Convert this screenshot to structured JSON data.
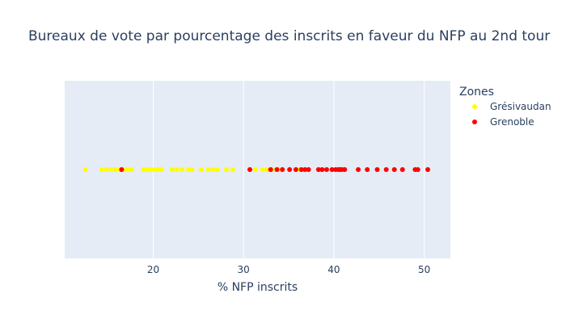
{
  "chart_data": {
    "type": "scatter",
    "title": "Bureaux de vote par pourcentage des inscrits en faveur du NFP au 2nd tour",
    "xlabel": "% NFP inscrits",
    "ylabel": "",
    "xlim": [
      10.2,
      52.9
    ],
    "xticks": [
      20,
      30,
      40,
      50
    ],
    "legend_title": "Zones",
    "legend_position": "right",
    "series": [
      {
        "name": "Grésivaudan",
        "color": "#ffff00",
        "x": [
          12.5,
          14.3,
          14.8,
          15.3,
          15.8,
          16.3,
          16.7,
          17.2,
          17.6,
          18.9,
          19.3,
          19.7,
          20.1,
          20.5,
          20.9,
          22.1,
          22.6,
          23.2,
          23.9,
          24.3,
          25.3,
          26.1,
          26.6,
          27.1,
          28.1,
          28.8,
          31.3,
          32.1,
          32.6,
          33.2,
          34.0,
          36.2
        ]
      },
      {
        "name": "Grenoble",
        "color": "#ff0000",
        "x": [
          16.5,
          30.7,
          33.0,
          33.7,
          34.3,
          35.1,
          35.8,
          36.4,
          36.8,
          37.2,
          38.3,
          38.7,
          39.2,
          39.8,
          40.2,
          40.5,
          40.7,
          40.9,
          41.2,
          42.7,
          43.7,
          44.8,
          45.8,
          46.7,
          47.6,
          49.0,
          49.3,
          50.4
        ]
      }
    ]
  }
}
